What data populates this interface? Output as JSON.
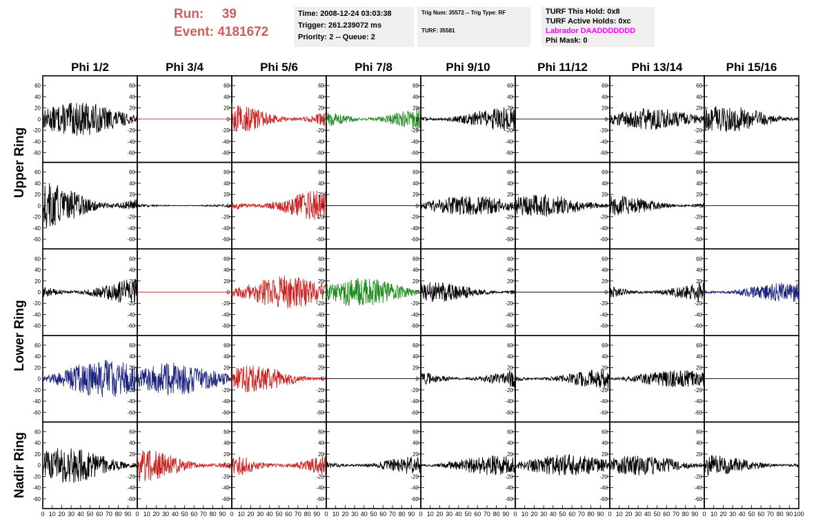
{
  "header": {
    "run_label": "Run:",
    "run_value": "39",
    "event_label": "Event:",
    "event_value": "4181672",
    "time_line": "Time: 2008-12-24 03:03:38",
    "trigger_line": "Trigger: 261.239072 ms",
    "priority_line": "Priority: 2 -- Queue: 2",
    "trig_line": "Trig Num: 35572 -- Trig Type: RF",
    "turf_line": "TURF: 35581",
    "turf_hold": "TURF This Hold: 0x8",
    "turf_active": "TURF Active Holds: 0xc",
    "labrador": "Labrador DAADDDDDDD",
    "phi_mask": "Phi Mask: 0"
  },
  "colors": {
    "run_text": "#cd5c5c",
    "info_bg": "#efefef",
    "labrador_text": "#ff00ff",
    "black": "#000000",
    "red": "#cc2222",
    "green": "#1e8c1e",
    "blue": "#1a237e"
  },
  "columns": [
    "Phi 1/2",
    "Phi 3/4",
    "Phi 5/6",
    "Phi 7/8",
    "Phi 9/10",
    "Phi 11/12",
    "Phi 13/14",
    "Phi 15/16"
  ],
  "ring_labels": [
    {
      "text": "Upper Ring",
      "rows": [
        0,
        1
      ]
    },
    {
      "text": "Lower Ring",
      "rows": [
        2,
        3
      ]
    },
    {
      "text": "Nadir Ring",
      "rows": [
        4
      ]
    }
  ],
  "chart_data": {
    "type": "line",
    "xlim": [
      0,
      100
    ],
    "ylim": [
      -70,
      70
    ],
    "y_ticks": [
      -60,
      -40,
      -20,
      0,
      20,
      40,
      60
    ],
    "x_ticks": [
      0,
      10,
      20,
      30,
      40,
      50,
      60,
      70,
      80,
      90,
      100
    ],
    "x_tick_labels": [
      "0",
      "10",
      "20",
      "30",
      "40",
      "50",
      "60",
      "70",
      "80",
      "90",
      "100"
    ],
    "panels": [
      {
        "row": 0,
        "col": 0,
        "color": "black",
        "amp": 30
      },
      {
        "row": 0,
        "col": 1,
        "color": "red",
        "amp": 0
      },
      {
        "row": 0,
        "col": 2,
        "color": "red",
        "amp": 30
      },
      {
        "row": 0,
        "col": 3,
        "color": "green",
        "amp": 26
      },
      {
        "row": 0,
        "col": 4,
        "color": "black",
        "amp": 22
      },
      {
        "row": 0,
        "col": 5,
        "color": "black",
        "amp": 0
      },
      {
        "row": 0,
        "col": 6,
        "color": "black",
        "amp": 20
      },
      {
        "row": 0,
        "col": 7,
        "color": "black",
        "amp": 24
      },
      {
        "row": 1,
        "col": 0,
        "color": "black",
        "amp": 42
      },
      {
        "row": 1,
        "col": 1,
        "color": "black",
        "amp": 4
      },
      {
        "row": 1,
        "col": 2,
        "color": "red",
        "amp": 30
      },
      {
        "row": 1,
        "col": 3,
        "color": "black",
        "amp": 0
      },
      {
        "row": 1,
        "col": 4,
        "color": "black",
        "amp": 18
      },
      {
        "row": 1,
        "col": 5,
        "color": "black",
        "amp": 20
      },
      {
        "row": 1,
        "col": 6,
        "color": "black",
        "amp": 18
      },
      {
        "row": 1,
        "col": 7,
        "color": "black",
        "amp": 0
      },
      {
        "row": 2,
        "col": 0,
        "color": "black",
        "amp": 26
      },
      {
        "row": 2,
        "col": 1,
        "color": "red",
        "amp": 0
      },
      {
        "row": 2,
        "col": 2,
        "color": "red",
        "amp": 30
      },
      {
        "row": 2,
        "col": 3,
        "color": "green",
        "amp": 26
      },
      {
        "row": 2,
        "col": 4,
        "color": "black",
        "amp": 18
      },
      {
        "row": 2,
        "col": 5,
        "color": "black",
        "amp": 0
      },
      {
        "row": 2,
        "col": 6,
        "color": "black",
        "amp": 20
      },
      {
        "row": 2,
        "col": 7,
        "color": "blue",
        "amp": 18
      },
      {
        "row": 3,
        "col": 0,
        "color": "blue",
        "amp": 34
      },
      {
        "row": 3,
        "col": 1,
        "color": "blue",
        "amp": 30
      },
      {
        "row": 3,
        "col": 2,
        "color": "red",
        "amp": 24
      },
      {
        "row": 3,
        "col": 3,
        "color": "black",
        "amp": 0
      },
      {
        "row": 3,
        "col": 4,
        "color": "black",
        "amp": 20
      },
      {
        "row": 3,
        "col": 5,
        "color": "black",
        "amp": 18
      },
      {
        "row": 3,
        "col": 6,
        "color": "black",
        "amp": 16
      },
      {
        "row": 3,
        "col": 7,
        "color": "black",
        "amp": 0
      },
      {
        "row": 4,
        "col": 0,
        "color": "black",
        "amp": 32
      },
      {
        "row": 4,
        "col": 1,
        "color": "red",
        "amp": 30
      },
      {
        "row": 4,
        "col": 2,
        "color": "red",
        "amp": 28
      },
      {
        "row": 4,
        "col": 3,
        "color": "black",
        "amp": 18
      },
      {
        "row": 4,
        "col": 4,
        "color": "black",
        "amp": 18
      },
      {
        "row": 4,
        "col": 5,
        "color": "black",
        "amp": 20
      },
      {
        "row": 4,
        "col": 6,
        "color": "black",
        "amp": 18
      },
      {
        "row": 4,
        "col": 7,
        "color": "black",
        "amp": 18
      }
    ]
  }
}
